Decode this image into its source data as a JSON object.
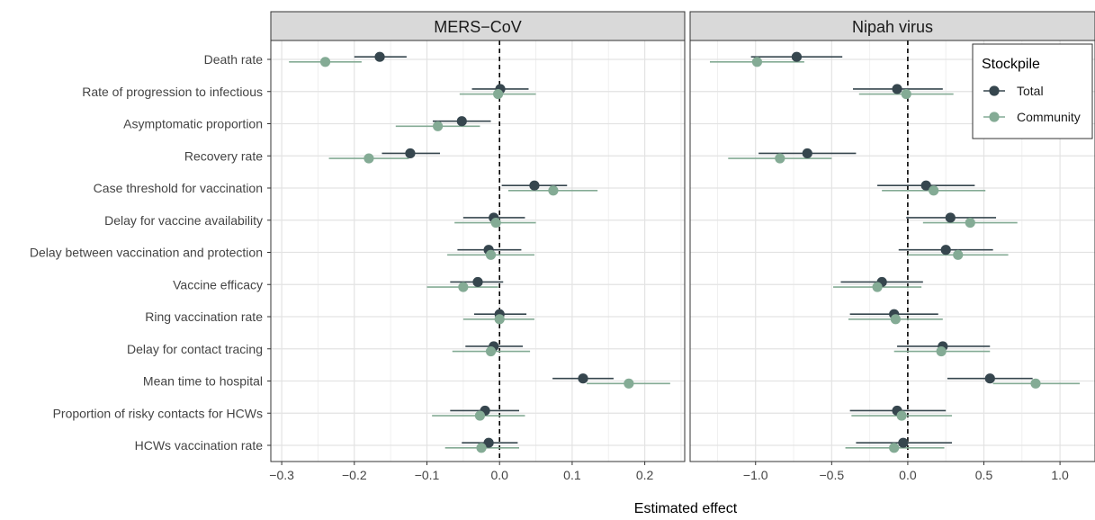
{
  "chart_data": {
    "type": "scatter",
    "subtype": "forest-plot-faceted",
    "xlabel": "Estimated effect",
    "ylabel": "",
    "categories": [
      "Death rate",
      "Rate of progression to infectious",
      "Asymptomatic proportion",
      "Recovery rate",
      "Case threshold for vaccination",
      "Delay for vaccine availability",
      "Delay between vaccination and protection",
      "Vaccine efficacy",
      "Ring vaccination rate",
      "Delay for contact tracing",
      "Mean time to hospital",
      "Proportion of risky contacts for HCWs",
      "HCWs vaccination rate"
    ],
    "legend": {
      "title": "Stockpile",
      "position": "top-right",
      "entries": [
        {
          "name": "Total",
          "color": "#36464e"
        },
        {
          "name": "Community",
          "color": "#84ab95"
        }
      ]
    },
    "grid": true,
    "reference_line": {
      "x": 0,
      "style": "dashed"
    },
    "panels": [
      {
        "title": "MERS−CoV",
        "xlim": [
          -0.315,
          0.255
        ],
        "xticks": [
          -0.3,
          -0.2,
          -0.1,
          0.0,
          0.1,
          0.2
        ],
        "xtick_labels": [
          "−0.3",
          "−0.2",
          "−0.1",
          "0.0",
          "0.1",
          "0.2"
        ],
        "series": [
          {
            "name": "Total",
            "estimate": [
              -0.165,
              0.001,
              -0.052,
              -0.123,
              0.048,
              -0.008,
              -0.015,
              -0.03,
              0.0,
              -0.008,
              0.115,
              -0.02,
              -0.015
            ],
            "lower": [
              -0.2,
              -0.038,
              -0.092,
              -0.162,
              0.003,
              -0.05,
              -0.058,
              -0.068,
              -0.035,
              -0.047,
              0.073,
              -0.068,
              -0.052
            ],
            "upper": [
              -0.128,
              0.04,
              -0.012,
              -0.082,
              0.093,
              0.035,
              0.03,
              0.005,
              0.037,
              0.032,
              0.157,
              0.027,
              0.025
            ]
          },
          {
            "name": "Community",
            "estimate": [
              -0.24,
              -0.002,
              -0.085,
              -0.18,
              0.074,
              -0.005,
              -0.012,
              -0.05,
              0.0,
              -0.012,
              0.178,
              -0.027,
              -0.025
            ],
            "lower": [
              -0.29,
              -0.055,
              -0.143,
              -0.235,
              0.012,
              -0.062,
              -0.072,
              -0.1,
              -0.05,
              -0.065,
              0.12,
              -0.093,
              -0.075
            ],
            "upper": [
              -0.19,
              0.05,
              -0.027,
              -0.125,
              0.135,
              0.05,
              0.048,
              -0.002,
              0.048,
              0.042,
              0.235,
              0.035,
              0.027
            ]
          }
        ]
      },
      {
        "title": "Nipah virus",
        "xlim": [
          -1.43,
          1.23
        ],
        "xticks": [
          -1.0,
          -0.5,
          0.0,
          0.5,
          1.0
        ],
        "xtick_labels": [
          "−1.0",
          "−0.5",
          "0.0",
          "0.5",
          "1.0"
        ],
        "series": [
          {
            "name": "Total",
            "estimate": [
              -0.73,
              -0.07,
              null,
              -0.66,
              0.12,
              0.28,
              0.25,
              -0.17,
              -0.09,
              0.23,
              0.54,
              -0.07,
              -0.03
            ],
            "lower": [
              -1.03,
              -0.36,
              null,
              -0.98,
              -0.2,
              -0.01,
              -0.06,
              -0.44,
              -0.38,
              -0.07,
              0.26,
              -0.38,
              -0.34
            ],
            "upper": [
              -0.43,
              0.23,
              null,
              -0.34,
              0.44,
              0.58,
              0.56,
              0.1,
              0.2,
              0.54,
              0.82,
              0.25,
              0.29
            ]
          },
          {
            "name": "Community",
            "estimate": [
              -0.99,
              -0.01,
              null,
              -0.84,
              0.17,
              0.41,
              0.33,
              -0.2,
              -0.08,
              0.22,
              0.84,
              -0.04,
              -0.09
            ],
            "lower": [
              -1.3,
              -0.32,
              null,
              -1.18,
              -0.17,
              0.1,
              0.0,
              -0.49,
              -0.39,
              -0.09,
              0.56,
              -0.37,
              -0.41
            ],
            "upper": [
              -0.68,
              0.3,
              null,
              -0.5,
              0.51,
              0.72,
              0.66,
              0.09,
              0.23,
              0.54,
              1.13,
              0.29,
              0.24
            ]
          }
        ]
      }
    ]
  }
}
